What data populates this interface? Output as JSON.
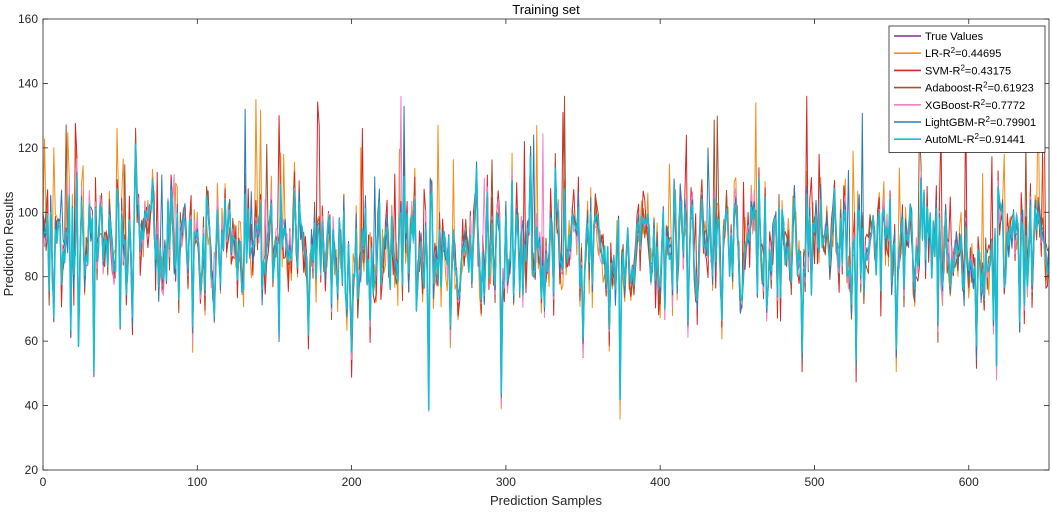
{
  "chart_data": {
    "type": "line",
    "title": "Training set",
    "xlabel": "Prediction Samples",
    "ylabel": "Prediction Results",
    "xlim": [
      0,
      652
    ],
    "ylim": [
      20,
      160
    ],
    "xticks": [
      0,
      100,
      200,
      300,
      400,
      500,
      600
    ],
    "xtick_labels": [
      "0",
      "100",
      "200",
      "300",
      "400",
      "500",
      "600"
    ],
    "yticks": [
      20,
      40,
      60,
      80,
      100,
      120,
      140,
      160
    ],
    "ytick_labels": [
      "20",
      "40",
      "60",
      "80",
      "100",
      "120",
      "140",
      "160"
    ],
    "grid": false,
    "legend_position": "top-right",
    "n_samples": 653,
    "true_anchor_points": [
      [
        0,
        95
      ],
      [
        7,
        66
      ],
      [
        18,
        62
      ],
      [
        33,
        49
      ],
      [
        50,
        65
      ],
      [
        75,
        75
      ],
      [
        97,
        64
      ],
      [
        100,
        95
      ],
      [
        115,
        78
      ],
      [
        135,
        88
      ],
      [
        153,
        62
      ],
      [
        172,
        63
      ],
      [
        200,
        57
      ],
      [
        212,
        67
      ],
      [
        225,
        76
      ],
      [
        250,
        40
      ],
      [
        264,
        63
      ],
      [
        297,
        43
      ],
      [
        325,
        71
      ],
      [
        350,
        60
      ],
      [
        374,
        43
      ],
      [
        400,
        75
      ],
      [
        418,
        65
      ],
      [
        440,
        68
      ],
      [
        463,
        76
      ],
      [
        492,
        56
      ],
      [
        527,
        54
      ],
      [
        553,
        58
      ],
      [
        580,
        66
      ],
      [
        605,
        58
      ],
      [
        618,
        52
      ],
      [
        633,
        66
      ],
      [
        652,
        86
      ]
    ],
    "series": [
      {
        "name": "True Values",
        "label_main": "True Values",
        "label_sup": "",
        "label_value": "",
        "color": "#7E2F8E",
        "r2": 1.0,
        "noise": 0,
        "spikes": 0
      },
      {
        "name": "LR-R2=0.44695",
        "label_main": "LR-R",
        "label_sup": "2",
        "label_value": "=0.44695",
        "color": "#EDB120",
        "r2": 0.44695,
        "noise": 11,
        "spikes": 18,
        "draw_color": "#F28E1C"
      },
      {
        "name": "SVM-R2=0.43175",
        "label_main": "SVM-R",
        "label_sup": "2",
        "label_value": "=0.43175",
        "color": "#D62728",
        "r2": 0.43175,
        "noise": 11,
        "spikes": 16
      },
      {
        "name": "Adaboost-R2=0.61923",
        "label_main": "Adaboost-R",
        "label_sup": "2",
        "label_value": "=0.61923",
        "color": "#A2522D",
        "r2": 0.61923,
        "noise": 8,
        "spikes": 10
      },
      {
        "name": "XGBoost-R2=0.7772",
        "label_main": "XGBoost-R",
        "label_sup": "2",
        "label_value": "=0.7772",
        "color": "#F080C8",
        "r2": 0.7772,
        "noise": 6,
        "spikes": 6
      },
      {
        "name": "LightGBM-R2=0.79901",
        "label_main": "LightGBM-R",
        "label_sup": "2",
        "label_value": "=0.79901",
        "color": "#2A7AB8",
        "r2": 0.79901,
        "noise": 5,
        "spikes": 6
      },
      {
        "name": "AutoML-R2=0.91441",
        "label_main": "AutoML-R",
        "label_sup": "2",
        "label_value": "=0.91441",
        "color": "#17BECF",
        "r2": 0.91441,
        "noise": 2.5,
        "spikes": 0
      }
    ]
  }
}
